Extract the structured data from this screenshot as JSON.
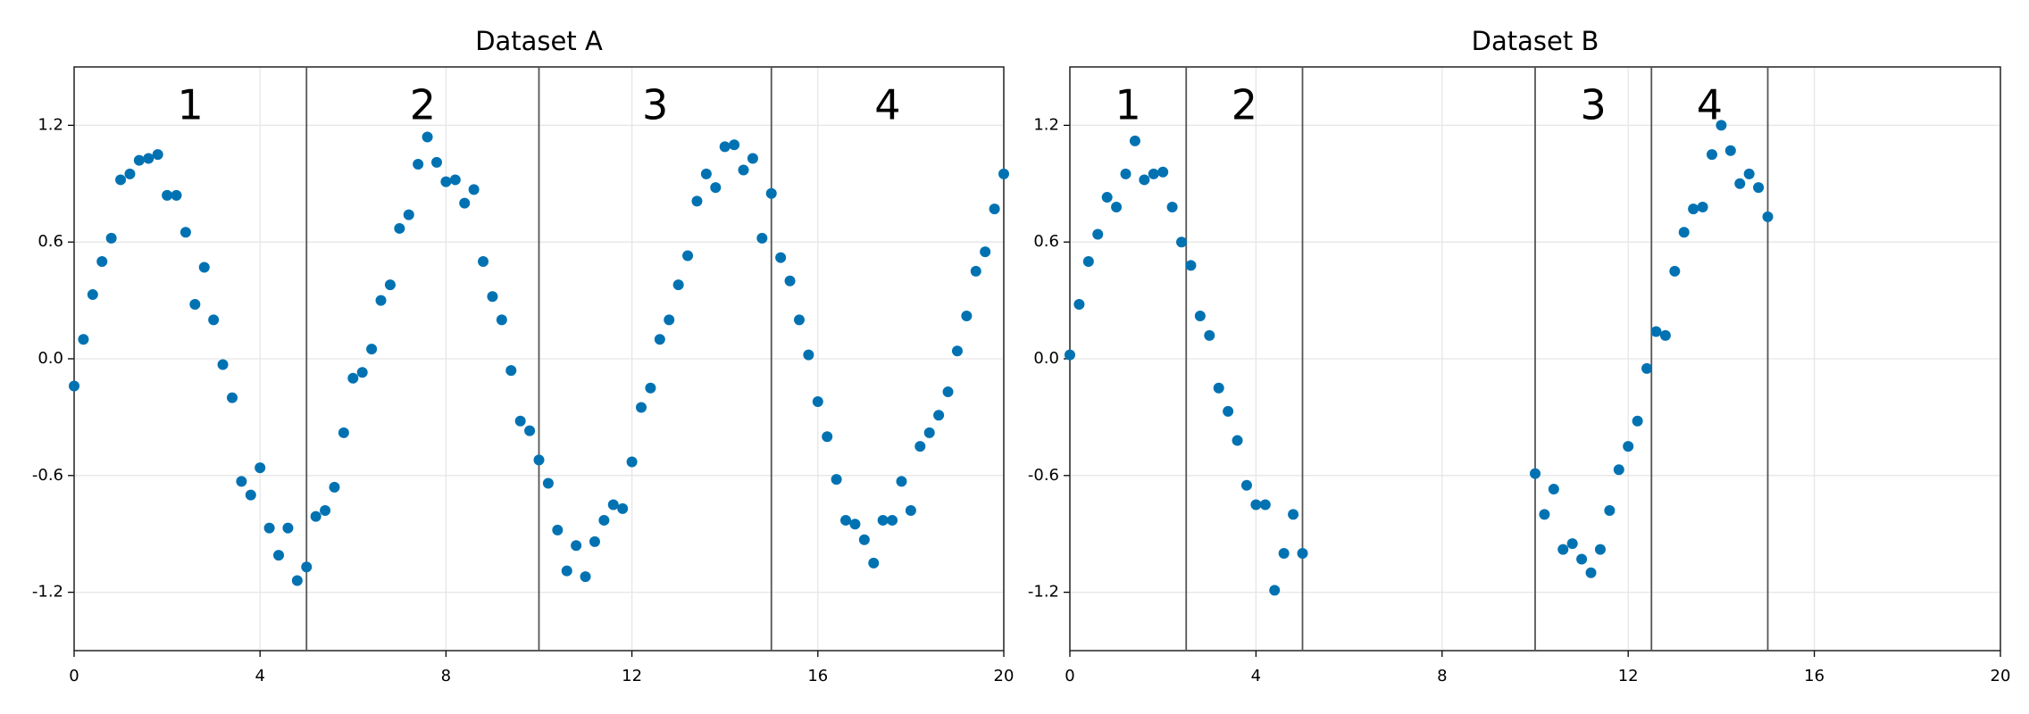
{
  "chart_data": [
    {
      "type": "scatter",
      "title": "Dataset A",
      "color": "#0072b2",
      "grid": true,
      "xlim": [
        0,
        20
      ],
      "ylim": [
        -1.5,
        1.5
      ],
      "xticks": [
        0,
        4,
        8,
        12,
        16,
        20
      ],
      "yticks": [
        -1.2,
        -0.6,
        {
          "value": 0,
          "label": "0.0"
        },
        0.6,
        1.2
      ],
      "vlines": [
        5,
        10,
        15
      ],
      "regions": [
        {
          "label": "1",
          "xmin": 0,
          "xmax": 5
        },
        {
          "label": "2",
          "xmin": 5,
          "xmax": 10
        },
        {
          "label": "3",
          "xmin": 10,
          "xmax": 15
        },
        {
          "label": "4",
          "xmin": 15,
          "xmax": 20
        }
      ],
      "x": [
        0,
        0.2,
        0.4,
        0.6,
        0.8,
        1.0,
        1.2,
        1.4,
        1.6,
        1.8,
        2.0,
        2.2,
        2.4,
        2.6,
        2.8,
        3.0,
        3.2,
        3.4,
        3.6,
        3.8,
        4.0,
        4.2,
        4.4,
        4.6,
        4.8,
        5.0,
        5.2,
        5.4,
        5.6,
        5.8,
        6.0,
        6.2,
        6.4,
        6.6,
        6.8,
        7.0,
        7.2,
        7.4,
        7.6,
        7.8,
        8.0,
        8.2,
        8.4,
        8.6,
        8.8,
        9.0,
        9.2,
        9.4,
        9.6,
        9.8,
        10.0,
        10.2,
        10.4,
        10.6,
        10.8,
        11.0,
        11.2,
        11.4,
        11.6,
        11.8,
        12.0,
        12.2,
        12.4,
        12.6,
        12.8,
        13.0,
        13.2,
        13.4,
        13.6,
        13.8,
        14.0,
        14.2,
        14.4,
        14.6,
        14.8,
        15.0,
        15.2,
        15.4,
        15.6,
        15.8,
        16.0,
        16.2,
        16.4,
        16.6,
        16.8,
        17.0,
        17.2,
        17.4,
        17.6,
        17.8,
        18.0,
        18.2,
        18.4,
        18.6,
        18.8,
        19.0,
        19.2,
        19.4,
        19.6,
        19.8,
        20.0
      ],
      "y": [
        -0.14,
        0.1,
        0.33,
        0.5,
        0.62,
        0.92,
        0.95,
        1.02,
        1.03,
        1.05,
        0.84,
        0.84,
        0.65,
        0.28,
        0.47,
        0.2,
        -0.03,
        -0.2,
        -0.63,
        -0.7,
        -0.56,
        -0.87,
        -1.01,
        -0.87,
        -1.14,
        -1.07,
        -0.81,
        -0.78,
        -0.66,
        -0.38,
        -0.1,
        -0.07,
        0.05,
        0.3,
        0.38,
        0.67,
        0.74,
        1.0,
        1.14,
        1.01,
        0.91,
        0.92,
        0.8,
        0.87,
        0.5,
        0.32,
        0.2,
        -0.06,
        -0.32,
        -0.37,
        -0.52,
        -0.64,
        -0.88,
        -1.09,
        -0.96,
        -1.12,
        -0.94,
        -0.83,
        -0.75,
        -0.77,
        -0.53,
        -0.25,
        -0.15,
        0.1,
        0.2,
        0.38,
        0.53,
        0.81,
        0.95,
        0.88,
        1.09,
        1.1,
        0.97,
        1.03,
        0.62,
        0.85,
        0.52,
        0.4,
        0.2,
        0.02,
        -0.22,
        -0.4,
        -0.62,
        -0.83,
        -0.85,
        -0.93,
        -1.05,
        -0.83,
        -0.83,
        -0.63,
        -0.78,
        -0.45,
        -0.38,
        -0.29,
        -0.17,
        0.04,
        0.22,
        0.45,
        0.55,
        0.77,
        0.95
      ]
    },
    {
      "type": "scatter",
      "title": "Dataset B",
      "color": "#0072b2",
      "grid": true,
      "xlim": [
        0,
        20
      ],
      "ylim": [
        -1.5,
        1.5
      ],
      "xticks": [
        0,
        4,
        8,
        12,
        16,
        20
      ],
      "yticks": [
        -1.2,
        -0.6,
        {
          "value": 0,
          "label": "0.0"
        },
        0.6,
        1.2
      ],
      "vlines": [
        2.5,
        5,
        10,
        12.5,
        15
      ],
      "regions": [
        {
          "label": "1",
          "xmin": 0,
          "xmax": 2.5
        },
        {
          "label": "2",
          "xmin": 2.5,
          "xmax": 5
        },
        {
          "label": "3",
          "xmin": 10,
          "xmax": 12.5
        },
        {
          "label": "4",
          "xmin": 12.5,
          "xmax": 15
        }
      ],
      "x": [
        0,
        0.2,
        0.4,
        0.6,
        0.8,
        1.0,
        1.2,
        1.4,
        1.6,
        1.8,
        2.0,
        2.2,
        2.4,
        2.6,
        2.8,
        3.0,
        3.2,
        3.4,
        3.6,
        3.8,
        4.0,
        4.2,
        4.4,
        4.6,
        4.8,
        5.0,
        10.0,
        10.2,
        10.4,
        10.6,
        10.8,
        11.0,
        11.2,
        11.4,
        11.6,
        11.8,
        12.0,
        12.2,
        12.4,
        12.6,
        12.8,
        13.0,
        13.2,
        13.4,
        13.6,
        13.8,
        14.0,
        14.2,
        14.4,
        14.6,
        14.8,
        15.0
      ],
      "y": [
        0.02,
        0.28,
        0.5,
        0.64,
        0.83,
        0.78,
        0.95,
        1.12,
        0.92,
        0.95,
        0.96,
        0.78,
        0.6,
        0.48,
        0.22,
        0.12,
        -0.15,
        -0.27,
        -0.42,
        -0.65,
        -0.75,
        -0.75,
        -1.19,
        -1.0,
        -0.8,
        -1.0,
        -0.59,
        -0.8,
        -0.67,
        -0.98,
        -0.95,
        -1.03,
        -1.1,
        -0.98,
        -0.78,
        -0.57,
        -0.45,
        -0.32,
        -0.05,
        0.14,
        0.12,
        0.45,
        0.65,
        0.77,
        0.78,
        1.05,
        1.2,
        1.07,
        0.9,
        0.95,
        0.88,
        0.73
      ]
    }
  ]
}
